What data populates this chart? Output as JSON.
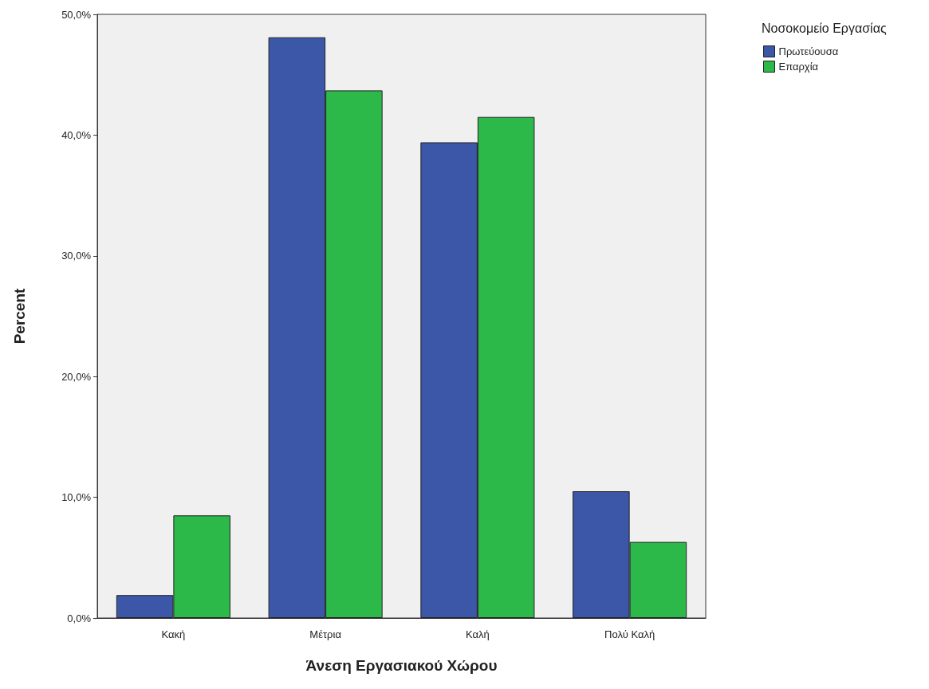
{
  "chart_data": {
    "type": "bar",
    "xlabel": "Άνεση Εργασιακού Χώρου",
    "ylabel": "Percent",
    "legend_title": "Νοσοκομείο Εργασίας",
    "categories": [
      "Κακή",
      "Μέτρια",
      "Καλή",
      "Πολύ Καλή"
    ],
    "series": [
      {
        "name": "Πρωτεύουσα",
        "color": "#3c56a8",
        "values": [
          1.9,
          48.1,
          39.4,
          10.5
        ]
      },
      {
        "name": "Επαρχία",
        "color": "#2db84a",
        "values": [
          8.5,
          43.7,
          41.5,
          6.3
        ]
      }
    ],
    "ylim": [
      0,
      50
    ],
    "yticks": [
      {
        "value": 0,
        "label": "0,0%"
      },
      {
        "value": 10,
        "label": "10,0%"
      },
      {
        "value": 20,
        "label": "20,0%"
      },
      {
        "value": 30,
        "label": "30,0%"
      },
      {
        "value": 40,
        "label": "40,0%"
      },
      {
        "value": 50,
        "label": "50,0%"
      }
    ],
    "grid": false,
    "legend": "top right"
  }
}
